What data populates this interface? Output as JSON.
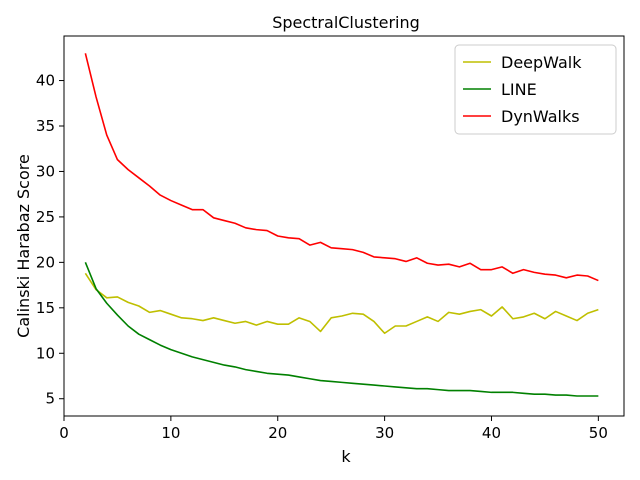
{
  "chart_data": {
    "type": "line",
    "title": "SpectralClustering",
    "xlabel": "k",
    "ylabel": "Calinski Harabaz Score",
    "xlim": [
      0,
      52.4
    ],
    "ylim": [
      3.1,
      44.9
    ],
    "xticks": [
      0,
      10,
      20,
      30,
      40,
      50
    ],
    "yticks": [
      5,
      10,
      15,
      20,
      25,
      30,
      35,
      40
    ],
    "grid": false,
    "legend": "upper right",
    "x": [
      2,
      3,
      4,
      5,
      6,
      7,
      8,
      9,
      10,
      11,
      12,
      13,
      14,
      15,
      16,
      17,
      18,
      19,
      20,
      21,
      22,
      23,
      24,
      25,
      26,
      27,
      28,
      29,
      30,
      31,
      32,
      33,
      34,
      35,
      36,
      37,
      38,
      39,
      40,
      41,
      42,
      43,
      44,
      45,
      46,
      47,
      48,
      49,
      50
    ],
    "series": [
      {
        "name": "DeepWalk",
        "color": "#bfbf00",
        "values": [
          18.8,
          17.0,
          16.1,
          16.2,
          15.6,
          15.2,
          14.5,
          14.7,
          14.3,
          13.9,
          13.8,
          13.6,
          13.9,
          13.6,
          13.3,
          13.5,
          13.1,
          13.5,
          13.2,
          13.2,
          13.9,
          13.5,
          12.4,
          13.9,
          14.1,
          14.4,
          14.3,
          13.5,
          12.2,
          13.0,
          13.0,
          13.5,
          14.0,
          13.5,
          14.5,
          14.3,
          14.6,
          14.8,
          14.1,
          15.1,
          13.8,
          14.0,
          14.4,
          13.8,
          14.6,
          14.1,
          13.6,
          14.4,
          14.8
        ]
      },
      {
        "name": "LINE",
        "color": "#008000",
        "values": [
          20.0,
          17.1,
          15.5,
          14.2,
          13.0,
          12.1,
          11.5,
          10.9,
          10.4,
          10.0,
          9.6,
          9.3,
          9.0,
          8.7,
          8.5,
          8.2,
          8.0,
          7.8,
          7.7,
          7.6,
          7.4,
          7.2,
          7.0,
          6.9,
          6.8,
          6.7,
          6.6,
          6.5,
          6.4,
          6.3,
          6.2,
          6.1,
          6.1,
          6.0,
          5.9,
          5.9,
          5.9,
          5.8,
          5.7,
          5.7,
          5.7,
          5.6,
          5.5,
          5.5,
          5.4,
          5.4,
          5.3,
          5.3,
          5.3
        ]
      },
      {
        "name": "DynWalks",
        "color": "#ff0000",
        "values": [
          43.0,
          38.2,
          34.0,
          31.3,
          30.2,
          29.3,
          28.4,
          27.4,
          26.8,
          26.3,
          25.8,
          25.8,
          24.9,
          24.6,
          24.3,
          23.8,
          23.6,
          23.5,
          22.9,
          22.7,
          22.6,
          21.9,
          22.2,
          21.6,
          21.5,
          21.4,
          21.1,
          20.6,
          20.5,
          20.4,
          20.1,
          20.5,
          19.9,
          19.7,
          19.8,
          19.5,
          19.9,
          19.2,
          19.2,
          19.5,
          18.8,
          19.2,
          18.9,
          18.7,
          18.6,
          18.3,
          18.6,
          18.5,
          18.0
        ]
      }
    ]
  }
}
